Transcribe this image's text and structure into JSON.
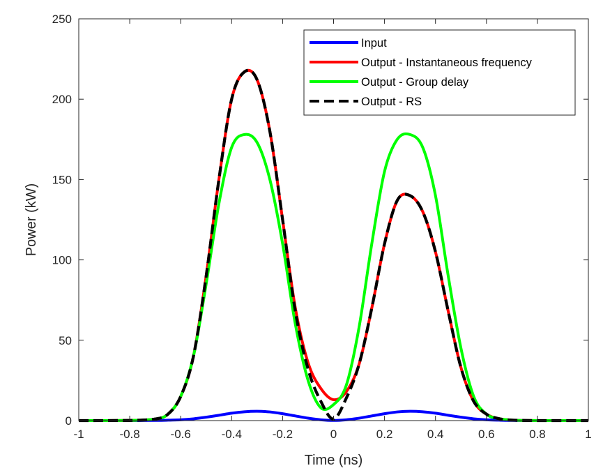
{
  "chart_data": {
    "type": "line",
    "title": "",
    "xlabel": "Time (ns)",
    "ylabel": "Power (kW)",
    "xlim": [
      -1,
      1
    ],
    "ylim": [
      0,
      250
    ],
    "xticks": [
      -1,
      -0.8,
      -0.6,
      -0.4,
      -0.2,
      0,
      0.2,
      0.4,
      0.6,
      0.8,
      1
    ],
    "xtick_labels": [
      "-1",
      "-0.8",
      "-0.6",
      "-0.4",
      "-0.2",
      "0",
      "0.2",
      "0.4",
      "0.6",
      "0.8",
      "1"
    ],
    "yticks": [
      0,
      50,
      100,
      150,
      200,
      250
    ],
    "ytick_labels": [
      "0",
      "50",
      "100",
      "150",
      "200",
      "250"
    ],
    "grid": false,
    "legend_position": "top-right",
    "x": [
      -1.0,
      -0.8,
      -0.7,
      -0.65,
      -0.6,
      -0.55,
      -0.5,
      -0.45,
      -0.4,
      -0.35,
      -0.3,
      -0.25,
      -0.2,
      -0.15,
      -0.1,
      -0.05,
      0.0,
      0.05,
      0.1,
      0.15,
      0.2,
      0.25,
      0.3,
      0.35,
      0.4,
      0.45,
      0.5,
      0.55,
      0.6,
      0.65,
      0.7,
      0.8,
      1.0
    ],
    "series": [
      {
        "name": "Input",
        "color": "#0000ff",
        "style": "solid",
        "values": [
          0,
          0,
          0.1,
          0.25,
          0.5,
          1.1,
          2.1,
          3.3,
          4.6,
          5.5,
          5.8,
          5.4,
          4.3,
          2.9,
          1.5,
          0.5,
          0.1,
          0.5,
          1.5,
          2.9,
          4.3,
          5.4,
          5.8,
          5.5,
          4.6,
          3.3,
          2.1,
          1.1,
          0.5,
          0.25,
          0.1,
          0,
          0
        ]
      },
      {
        "name": "Output - Instantaneous frequency",
        "color": "#ff0000",
        "style": "solid",
        "values": [
          0,
          0.1,
          1,
          4,
          15,
          40,
          90,
          150,
          200,
          217,
          212,
          180,
          125,
          70,
          36,
          20,
          13,
          18,
          35,
          70,
          110,
          137,
          140,
          130,
          105,
          68,
          33,
          12,
          4,
          1.2,
          0.3,
          0,
          0
        ]
      },
      {
        "name": "Output - Group delay",
        "color": "#00ff00",
        "style": "solid",
        "values": [
          0,
          0.1,
          1,
          4,
          15,
          40,
          85,
          135,
          170,
          178,
          173,
          150,
          110,
          60,
          25,
          8,
          10,
          22,
          58,
          110,
          155,
          175,
          178,
          170,
          140,
          90,
          45,
          15,
          4,
          1.2,
          0.3,
          0,
          0
        ]
      },
      {
        "name": "Output - RS",
        "color": "#000000",
        "style": "dashed",
        "values": [
          0,
          0.1,
          1,
          4,
          15,
          40,
          90,
          150,
          200,
          217,
          212,
          180,
          125,
          68,
          32,
          12,
          1,
          14,
          35,
          70,
          110,
          137,
          140,
          130,
          105,
          68,
          33,
          12,
          4,
          1.2,
          0.3,
          0,
          0
        ]
      }
    ]
  }
}
